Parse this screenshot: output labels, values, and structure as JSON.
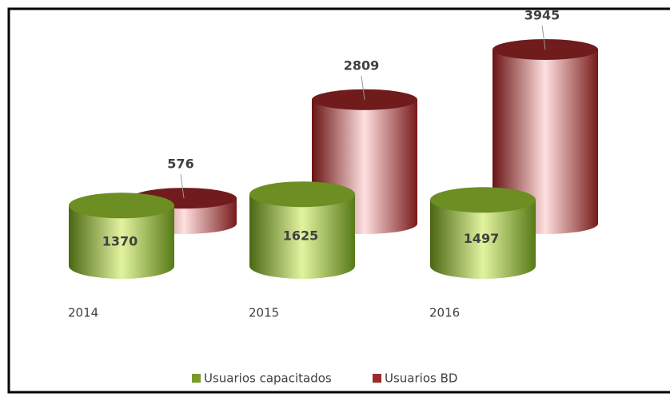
{
  "chart_data": {
    "type": "cylinder",
    "categories": [
      "2014",
      "2015",
      "2016"
    ],
    "series": [
      {
        "name": "Usuarios capacitados",
        "color": "#7a9a2a",
        "values": [
          1370,
          1625,
          1497
        ]
      },
      {
        "name": "Usuarios BD",
        "color": "#9b2a2a",
        "values": [
          576,
          2809,
          3945
        ]
      }
    ]
  }
}
